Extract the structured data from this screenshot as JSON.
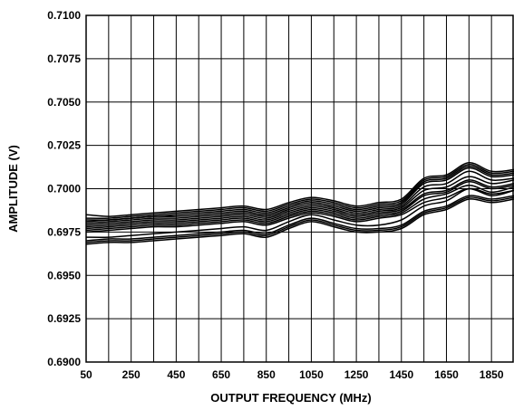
{
  "chart_data": {
    "type": "line",
    "title": "",
    "xlabel": "OUTPUT FREQUENCY (MHz)",
    "ylabel": "AMPLITUDE (V)",
    "xlim": [
      50,
      1950
    ],
    "ylim": [
      0.69,
      0.71
    ],
    "grid": true,
    "legend": "none",
    "x_ticks": [
      50,
      250,
      450,
      650,
      850,
      1050,
      1250,
      1450,
      1650,
      1850
    ],
    "x_tick_labels": [
      "50",
      "250",
      "450",
      "650",
      "850",
      "1050",
      "1250",
      "1450",
      "1650",
      "1850"
    ],
    "y_ticks": [
      0.69,
      0.6925,
      0.695,
      0.6975,
      0.7,
      0.7025,
      0.705,
      0.7075,
      0.71
    ],
    "y_tick_labels": [
      "0.6900",
      "0.6925",
      "0.6950",
      "0.6975",
      "0.7000",
      "0.7025",
      "0.7050",
      "0.7075",
      "0.7100"
    ],
    "x": [
      50,
      150,
      250,
      350,
      450,
      550,
      650,
      750,
      850,
      950,
      1050,
      1150,
      1250,
      1350,
      1450,
      1550,
      1650,
      1750,
      1850,
      1950
    ],
    "series": [
      {
        "values": [
          0.697,
          0.6971,
          0.6971,
          0.6972,
          0.6973,
          0.6974,
          0.6975,
          0.6976,
          0.6974,
          0.6979,
          0.6983,
          0.698,
          0.6977,
          0.6977,
          0.6979,
          0.6987,
          0.699,
          0.6996,
          0.6994,
          0.6996
        ]
      },
      {
        "values": [
          0.6969,
          0.697,
          0.697,
          0.6971,
          0.6972,
          0.6973,
          0.6974,
          0.6975,
          0.6973,
          0.6978,
          0.6982,
          0.6979,
          0.6976,
          0.6976,
          0.6978,
          0.6986,
          0.6989,
          0.6995,
          0.6993,
          0.6995
        ]
      },
      {
        "values": [
          0.6968,
          0.6969,
          0.6969,
          0.697,
          0.6971,
          0.6972,
          0.6973,
          0.6974,
          0.6972,
          0.6977,
          0.6981,
          0.6978,
          0.6975,
          0.6975,
          0.6977,
          0.6985,
          0.6988,
          0.6994,
          0.6992,
          0.6994
        ]
      },
      {
        "values": [
          0.6972,
          0.6972,
          0.6973,
          0.6974,
          0.6975,
          0.6976,
          0.6977,
          0.6978,
          0.6976,
          0.6981,
          0.6985,
          0.6982,
          0.6979,
          0.6979,
          0.6982,
          0.699,
          0.6993,
          0.7,
          0.6997,
          0.6999
        ]
      },
      {
        "values": [
          0.6977,
          0.6978,
          0.6979,
          0.698,
          0.698,
          0.6981,
          0.6982,
          0.6983,
          0.6981,
          0.6985,
          0.6988,
          0.6986,
          0.6983,
          0.6985,
          0.6987,
          0.6996,
          0.6998,
          0.7004,
          0.7,
          0.7002
        ]
      },
      {
        "values": [
          0.6979,
          0.698,
          0.6981,
          0.6982,
          0.6982,
          0.6983,
          0.6984,
          0.6985,
          0.6983,
          0.6987,
          0.699,
          0.6988,
          0.6985,
          0.6987,
          0.6989,
          0.6999,
          0.7001,
          0.7007,
          0.7003,
          0.7005
        ]
      },
      {
        "values": [
          0.6978,
          0.6979,
          0.698,
          0.6981,
          0.6981,
          0.6982,
          0.6983,
          0.6984,
          0.6982,
          0.6986,
          0.6989,
          0.6987,
          0.6984,
          0.6986,
          0.6988,
          0.6997,
          0.6999,
          0.7005,
          0.7001,
          0.7003
        ]
      },
      {
        "values": [
          0.698,
          0.6981,
          0.6982,
          0.6983,
          0.6983,
          0.6984,
          0.6985,
          0.6986,
          0.6984,
          0.6988,
          0.6991,
          0.6989,
          0.6986,
          0.6988,
          0.699,
          0.7001,
          0.7003,
          0.701,
          0.7005,
          0.7006
        ]
      },
      {
        "values": [
          0.6981,
          0.6982,
          0.6983,
          0.6984,
          0.6984,
          0.6985,
          0.6986,
          0.6987,
          0.6985,
          0.6989,
          0.6992,
          0.699,
          0.6987,
          0.6989,
          0.6991,
          0.7003,
          0.7005,
          0.7012,
          0.7007,
          0.7008
        ]
      },
      {
        "values": [
          0.6982,
          0.6982,
          0.6983,
          0.6984,
          0.6985,
          0.6986,
          0.6987,
          0.6988,
          0.6986,
          0.699,
          0.6993,
          0.6991,
          0.6988,
          0.699,
          0.6992,
          0.7004,
          0.7006,
          0.7013,
          0.7008,
          0.7009
        ]
      },
      {
        "values": [
          0.6983,
          0.6983,
          0.6984,
          0.6985,
          0.6986,
          0.6987,
          0.6988,
          0.6989,
          0.6987,
          0.6991,
          0.6994,
          0.6992,
          0.6989,
          0.6991,
          0.6993,
          0.7005,
          0.7007,
          0.7014,
          0.7009,
          0.701
        ]
      },
      {
        "values": [
          0.6976,
          0.6977,
          0.6978,
          0.6979,
          0.6979,
          0.698,
          0.6981,
          0.6982,
          0.698,
          0.6984,
          0.6987,
          0.6985,
          0.6982,
          0.6984,
          0.6986,
          0.6994,
          0.6997,
          0.7002,
          0.6998,
          0.7001
        ]
      },
      {
        "values": [
          0.6975,
          0.6976,
          0.6977,
          0.6978,
          0.6978,
          0.6979,
          0.698,
          0.6981,
          0.6979,
          0.6983,
          0.6986,
          0.6984,
          0.6981,
          0.6983,
          0.6985,
          0.6992,
          0.6995,
          0.7,
          0.6996,
          0.6999
        ]
      },
      {
        "values": [
          0.6985,
          0.6984,
          0.6985,
          0.6986,
          0.6987,
          0.6988,
          0.6989,
          0.699,
          0.6988,
          0.6992,
          0.6995,
          0.6993,
          0.699,
          0.6992,
          0.6994,
          0.7006,
          0.7008,
          0.7015,
          0.701,
          0.7011
        ]
      }
    ]
  }
}
